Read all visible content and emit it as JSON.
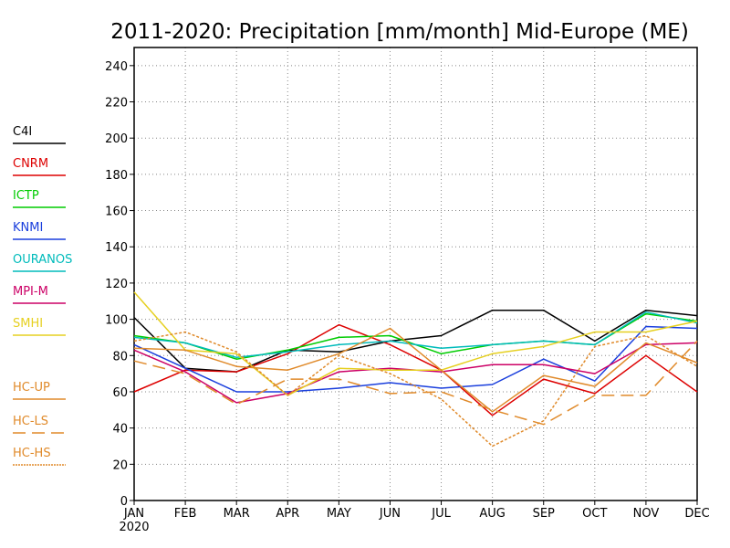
{
  "chart_data": {
    "type": "line",
    "title": "2011-2020: Precipitation [mm/month] Mid-Europe (ME)",
    "xlabel": "",
    "ylabel": "",
    "ylim": [
      0,
      250
    ],
    "yticks": [
      0,
      20,
      40,
      60,
      80,
      100,
      120,
      140,
      160,
      180,
      200,
      220,
      240
    ],
    "categories": [
      "JAN",
      "FEB",
      "MAR",
      "APR",
      "MAY",
      "JUN",
      "JUL",
      "AUG",
      "SEP",
      "OCT",
      "NOV",
      "DEC"
    ],
    "x_sublabel": "2020",
    "grid": true,
    "legend_placement": "left",
    "series": [
      {
        "name": "C4I",
        "color": "#000000",
        "dash": "solid",
        "values": [
          101,
          73,
          71,
          83,
          82,
          88,
          91,
          105,
          105,
          88,
          105,
          102
        ]
      },
      {
        "name": "CNRM",
        "color": "#dd0000",
        "dash": "solid",
        "values": [
          60,
          72,
          71,
          81,
          97,
          86,
          72,
          47,
          67,
          59,
          80,
          60
        ]
      },
      {
        "name": "ICTP",
        "color": "#00cc00",
        "dash": "solid",
        "values": [
          91,
          87,
          78,
          83,
          90,
          91,
          81,
          86,
          88,
          86,
          103,
          99
        ]
      },
      {
        "name": "KNMI",
        "color": "#1a3fdd",
        "dash": "solid",
        "values": [
          86,
          73,
          60,
          60,
          62,
          65,
          62,
          64,
          78,
          66,
          96,
          95
        ]
      },
      {
        "name": "OURANOS",
        "color": "#00bbbb",
        "dash": "solid",
        "values": [
          90,
          87,
          79,
          82,
          86,
          88,
          84,
          86,
          88,
          86,
          104,
          98
        ]
      },
      {
        "name": "MPI-M",
        "color": "#cc0066",
        "dash": "solid",
        "values": [
          83,
          71,
          54,
          59,
          71,
          73,
          71,
          75,
          75,
          70,
          86,
          87
        ]
      },
      {
        "name": "SMHI",
        "color": "#e6d020",
        "dash": "solid",
        "values": [
          115,
          83,
          81,
          58,
          73,
          72,
          72,
          81,
          85,
          93,
          93,
          99
        ]
      },
      {
        "name": "HC-UP",
        "color": "#e08a2a",
        "dash": "solid",
        "values": [
          84,
          83,
          74,
          72,
          81,
          95,
          72,
          49,
          69,
          63,
          87,
          76
        ]
      },
      {
        "name": "HC-LS",
        "color": "#e08a2a",
        "dash": "long",
        "values": [
          77,
          70,
          53,
          67,
          67,
          59,
          60,
          50,
          42,
          58,
          58,
          88
        ]
      },
      {
        "name": "HC-HS",
        "color": "#e08a2a",
        "dash": "short",
        "values": [
          88,
          93,
          82,
          58,
          80,
          70,
          56,
          30,
          44,
          85,
          91,
          74
        ]
      }
    ]
  }
}
